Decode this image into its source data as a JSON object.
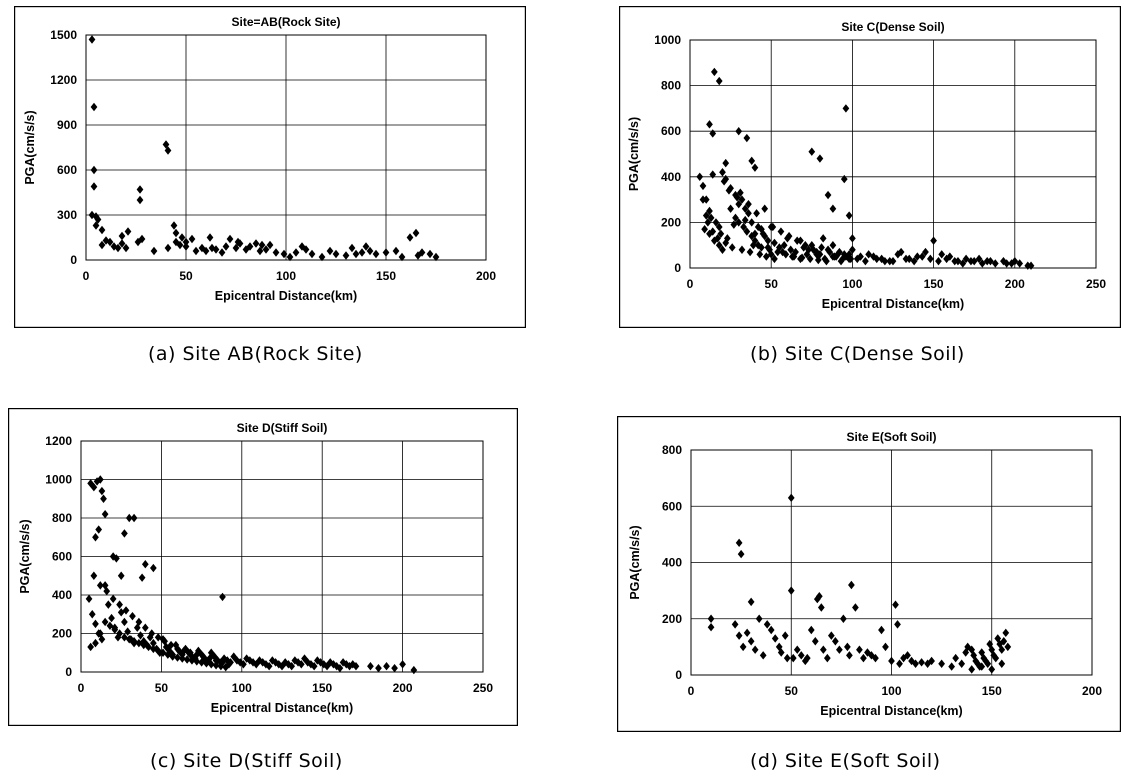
{
  "captions": {
    "a": "(a) Site AB(Rock Site)",
    "b": "(b) Site C(Dense Soil)",
    "c": "(c) Site D(Stiff Soil)",
    "d": "(d) Site E(Soft Soil)"
  },
  "chart_data": [
    {
      "type": "scatter",
      "title": "Site=AB(Rock Site)",
      "xlabel": "Epicentral Distance(km)",
      "ylabel": "PGA(cm/s/s)",
      "xlim": [
        0,
        200
      ],
      "ylim": [
        0,
        1500
      ],
      "xticks": [
        0,
        50,
        100,
        150,
        200
      ],
      "yticks": [
        0,
        300,
        600,
        900,
        1200,
        1500
      ],
      "grid": true,
      "legend": "none",
      "marker": "diamond",
      "color": "#000000",
      "x": [
        3,
        4,
        4,
        4,
        3,
        5,
        6,
        5,
        8,
        10,
        8,
        12,
        14,
        16,
        18,
        18,
        21,
        20,
        27,
        27,
        26,
        28,
        40,
        41,
        41,
        44,
        45,
        47,
        48,
        50,
        50,
        55,
        58,
        60,
        63,
        65,
        68,
        70,
        72,
        75,
        77,
        80,
        82,
        85,
        87,
        90,
        92,
        95,
        99,
        102,
        105,
        108,
        110,
        113,
        118,
        122,
        125,
        130,
        133,
        135,
        138,
        140,
        142,
        145,
        150,
        155,
        158,
        162,
        165,
        166,
        168,
        172,
        175,
        45,
        53,
        62,
        76,
        88,
        34
      ],
      "y": [
        1470,
        1020,
        600,
        490,
        300,
        290,
        270,
        230,
        200,
        130,
        100,
        120,
        90,
        80,
        110,
        160,
        190,
        80,
        470,
        400,
        120,
        140,
        770,
        730,
        80,
        230,
        120,
        100,
        150,
        90,
        120,
        60,
        80,
        60,
        80,
        70,
        50,
        90,
        140,
        80,
        110,
        70,
        90,
        110,
        60,
        70,
        100,
        50,
        40,
        20,
        50,
        90,
        70,
        40,
        20,
        60,
        40,
        30,
        80,
        40,
        50,
        90,
        60,
        40,
        50,
        60,
        20,
        150,
        180,
        30,
        50,
        40,
        20,
        180,
        140,
        150,
        120,
        100,
        60
      ]
    },
    {
      "type": "scatter",
      "title": "Site C(Dense Soil)",
      "xlabel": "Epicentral Distance(km)",
      "ylabel": "PGA(cm/s/s)",
      "xlim": [
        0,
        250
      ],
      "ylim": [
        0,
        1000
      ],
      "xticks": [
        0,
        50,
        100,
        150,
        200,
        250
      ],
      "yticks": [
        0,
        200,
        400,
        600,
        800,
        1000
      ],
      "grid": true,
      "legend": "none",
      "marker": "diamond",
      "color": "#000000",
      "x": [
        15,
        18,
        12,
        14,
        22,
        30,
        35,
        38,
        40,
        96,
        75,
        80,
        95,
        98,
        85,
        88,
        100,
        6,
        8,
        10,
        12,
        14,
        16,
        18,
        20,
        22,
        25,
        28,
        30,
        32,
        34,
        36,
        38,
        40,
        42,
        44,
        46,
        48,
        50,
        52,
        55,
        58,
        60,
        62,
        65,
        68,
        70,
        72,
        75,
        78,
        80,
        82,
        85,
        88,
        90,
        92,
        95,
        98,
        100,
        105,
        110,
        115,
        120,
        125,
        130,
        135,
        140,
        145,
        150,
        155,
        160,
        165,
        170,
        175,
        180,
        185,
        195,
        200,
        210,
        10,
        12,
        15,
        18,
        20,
        25,
        28,
        30,
        33,
        35,
        38,
        40,
        42,
        45,
        48,
        50,
        8,
        11,
        14,
        17,
        22,
        26,
        32,
        37,
        43,
        47,
        52,
        57,
        63,
        68,
        73,
        78,
        83,
        88,
        93,
        98,
        103,
        108,
        113,
        118,
        123,
        128,
        133,
        138,
        143,
        148,
        153,
        158,
        163,
        168,
        173,
        178,
        183,
        188,
        193,
        198,
        203,
        208,
        24,
        29,
        31,
        36,
        41,
        46,
        51,
        56,
        61,
        66,
        71,
        76,
        81,
        86,
        91,
        96,
        9,
        13,
        19,
        21,
        23,
        27,
        34,
        39,
        44,
        49,
        54,
        59,
        64,
        69,
        74,
        79,
        84,
        89,
        94,
        99
      ],
      "y": [
        860,
        820,
        630,
        590,
        460,
        600,
        570,
        470,
        440,
        700,
        510,
        480,
        390,
        230,
        320,
        260,
        130,
        400,
        360,
        300,
        250,
        410,
        200,
        180,
        420,
        390,
        350,
        320,
        280,
        300,
        260,
        240,
        200,
        150,
        180,
        170,
        140,
        120,
        180,
        110,
        90,
        100,
        130,
        80,
        70,
        120,
        90,
        60,
        100,
        70,
        60,
        130,
        80,
        100,
        50,
        70,
        60,
        40,
        80,
        50,
        60,
        40,
        30,
        30,
        70,
        40,
        50,
        70,
        120,
        60,
        50,
        30,
        40,
        30,
        20,
        30,
        20,
        30,
        10,
        230,
        150,
        120,
        100,
        80,
        260,
        220,
        200,
        180,
        160,
        140,
        120,
        100,
        150,
        90,
        60,
        300,
        200,
        160,
        130,
        110,
        90,
        80,
        70,
        60,
        50,
        40,
        70,
        50,
        40,
        80,
        60,
        40,
        50,
        30,
        60,
        40,
        30,
        50,
        40,
        30,
        60,
        40,
        30,
        50,
        40,
        30,
        40,
        30,
        20,
        30,
        40,
        30,
        20,
        30,
        20,
        20,
        10,
        340,
        310,
        330,
        280,
        240,
        260,
        180,
        160,
        140,
        120,
        100,
        80,
        90,
        70,
        60,
        50,
        170,
        220,
        150,
        380,
        130,
        190,
        210,
        100,
        90,
        80,
        70,
        60,
        50,
        45,
        40,
        35,
        30,
        50,
        40,
        40
      ],
      "series_note": ""
    },
    {
      "type": "scatter",
      "title": "Site D(Stiff Soil)",
      "xlabel": "Epicentral Distance(km)",
      "ylabel": "PGA(cm/s/s)",
      "xlim": [
        0,
        250
      ],
      "ylim": [
        0,
        1200
      ],
      "xticks": [
        0,
        50,
        100,
        150,
        200,
        250
      ],
      "yticks": [
        0,
        200,
        400,
        600,
        800,
        1000,
        1200
      ],
      "grid": true,
      "legend": "none",
      "marker": "diamond",
      "color": "#000000",
      "x": [
        6,
        8,
        10,
        12,
        13,
        14,
        15,
        11,
        9,
        30,
        33,
        27,
        40,
        45,
        38,
        20,
        22,
        25,
        88,
        5,
        7,
        9,
        11,
        13,
        15,
        17,
        19,
        21,
        23,
        25,
        27,
        29,
        31,
        33,
        35,
        37,
        39,
        41,
        43,
        45,
        47,
        49,
        51,
        53,
        55,
        57,
        59,
        61,
        63,
        65,
        67,
        69,
        71,
        73,
        75,
        77,
        79,
        81,
        83,
        85,
        87,
        89,
        91,
        93,
        95,
        97,
        99,
        101,
        103,
        105,
        107,
        109,
        111,
        113,
        115,
        117,
        119,
        121,
        123,
        125,
        127,
        129,
        131,
        133,
        135,
        137,
        139,
        141,
        143,
        145,
        147,
        149,
        151,
        153,
        155,
        157,
        159,
        161,
        163,
        165,
        167,
        169,
        171,
        180,
        185,
        190,
        195,
        200,
        207,
        6,
        9,
        12,
        15,
        18,
        21,
        24,
        27,
        30,
        33,
        36,
        39,
        42,
        45,
        48,
        51,
        54,
        57,
        60,
        63,
        66,
        69,
        72,
        75,
        78,
        81,
        84,
        87,
        90,
        8,
        12,
        16,
        20,
        24,
        28,
        32,
        36,
        40,
        44,
        48,
        52,
        56,
        60,
        64,
        68,
        72,
        76,
        80,
        84,
        88,
        92
      ],
      "y": [
        980,
        960,
        990,
        1000,
        940,
        900,
        820,
        740,
        700,
        800,
        800,
        720,
        560,
        540,
        490,
        600,
        590,
        500,
        390,
        380,
        300,
        250,
        200,
        170,
        450,
        350,
        280,
        220,
        180,
        310,
        260,
        210,
        170,
        150,
        230,
        190,
        160,
        140,
        180,
        150,
        120,
        100,
        170,
        130,
        110,
        90,
        140,
        110,
        90,
        120,
        100,
        80,
        70,
        110,
        90,
        70,
        60,
        100,
        80,
        60,
        50,
        70,
        60,
        50,
        80,
        60,
        50,
        40,
        70,
        60,
        50,
        40,
        60,
        50,
        40,
        30,
        60,
        50,
        40,
        30,
        50,
        40,
        30,
        60,
        50,
        40,
        70,
        50,
        40,
        30,
        60,
        50,
        40,
        30,
        50,
        40,
        30,
        20,
        50,
        40,
        30,
        40,
        30,
        30,
        20,
        30,
        20,
        40,
        10,
        130,
        150,
        200,
        260,
        240,
        230,
        200,
        180,
        170,
        160,
        150,
        140,
        130,
        120,
        110,
        100,
        90,
        80,
        75,
        70,
        65,
        60,
        55,
        50,
        45,
        40,
        35,
        30,
        25,
        500,
        450,
        420,
        380,
        350,
        320,
        290,
        260,
        230,
        200,
        180,
        160,
        140,
        120,
        110,
        100,
        90,
        80,
        70,
        60,
        50,
        40
      ]
    },
    {
      "type": "scatter",
      "title": "Site E(Soft Soil)",
      "xlabel": "Epicentral Distance(km)",
      "ylabel": "PGA(cm/s/s)",
      "xlim": [
        0,
        200
      ],
      "ylim": [
        0,
        800
      ],
      "xticks": [
        0,
        50,
        100,
        150,
        200
      ],
      "yticks": [
        0,
        200,
        400,
        600,
        800
      ],
      "grid": true,
      "legend": "none",
      "marker": "diamond",
      "color": "#000000",
      "x": [
        10,
        10,
        22,
        24,
        25,
        24,
        26,
        28,
        30,
        30,
        32,
        34,
        36,
        38,
        40,
        42,
        44,
        45,
        47,
        48,
        50,
        50,
        51,
        53,
        55,
        57,
        58,
        60,
        62,
        63,
        64,
        65,
        66,
        68,
        70,
        72,
        74,
        76,
        78,
        79,
        80,
        82,
        84,
        86,
        88,
        90,
        92,
        95,
        97,
        100,
        102,
        103,
        104,
        106,
        108,
        110,
        112,
        115,
        118,
        120,
        125,
        130,
        132,
        135,
        137,
        138,
        140,
        141,
        142,
        143,
        144,
        145,
        146,
        147,
        148,
        149,
        150,
        151,
        152,
        153,
        154,
        155,
        156,
        157,
        158,
        140,
        145,
        150,
        155
      ],
      "y": [
        200,
        170,
        180,
        470,
        430,
        140,
        100,
        150,
        260,
        120,
        90,
        200,
        70,
        180,
        160,
        130,
        100,
        80,
        140,
        60,
        630,
        300,
        60,
        90,
        70,
        50,
        60,
        160,
        120,
        270,
        280,
        240,
        90,
        60,
        140,
        120,
        90,
        200,
        100,
        70,
        320,
        240,
        90,
        60,
        80,
        70,
        60,
        160,
        100,
        50,
        250,
        180,
        40,
        60,
        70,
        50,
        40,
        45,
        40,
        50,
        40,
        30,
        60,
        40,
        80,
        100,
        90,
        70,
        50,
        40,
        30,
        80,
        60,
        50,
        40,
        110,
        90,
        70,
        60,
        130,
        110,
        90,
        120,
        150,
        100,
        20,
        30,
        20,
        40
      ]
    }
  ]
}
